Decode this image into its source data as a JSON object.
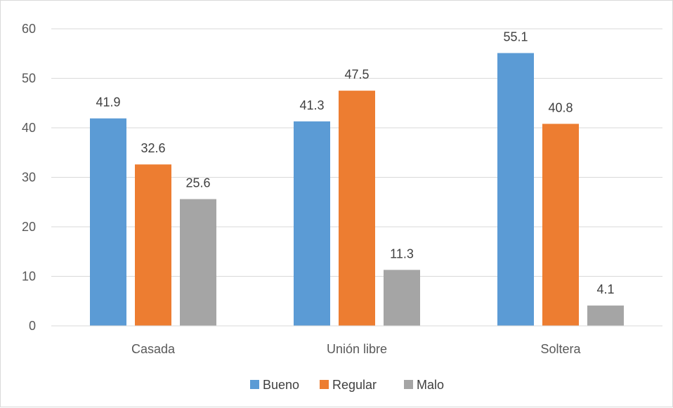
{
  "chart_data": {
    "type": "bar",
    "title": "",
    "xlabel": "",
    "ylabel": "",
    "categories": [
      "Casada",
      "Unión libre",
      "Soltera"
    ],
    "series": [
      {
        "name": "Bueno",
        "values": [
          41.9,
          41.3,
          55.1
        ],
        "color": "#5b9bd5"
      },
      {
        "name": "Regular",
        "values": [
          32.6,
          47.5,
          40.8
        ],
        "color": "#ed7d31"
      },
      {
        "name": "Malo",
        "values": [
          25.6,
          11.3,
          4.1
        ],
        "color": "#a5a5a5"
      }
    ],
    "ylim": [
      0,
      60
    ],
    "yticks": [
      0,
      10,
      20,
      30,
      40,
      50,
      60
    ],
    "grid": true,
    "legend_position": "bottom"
  }
}
